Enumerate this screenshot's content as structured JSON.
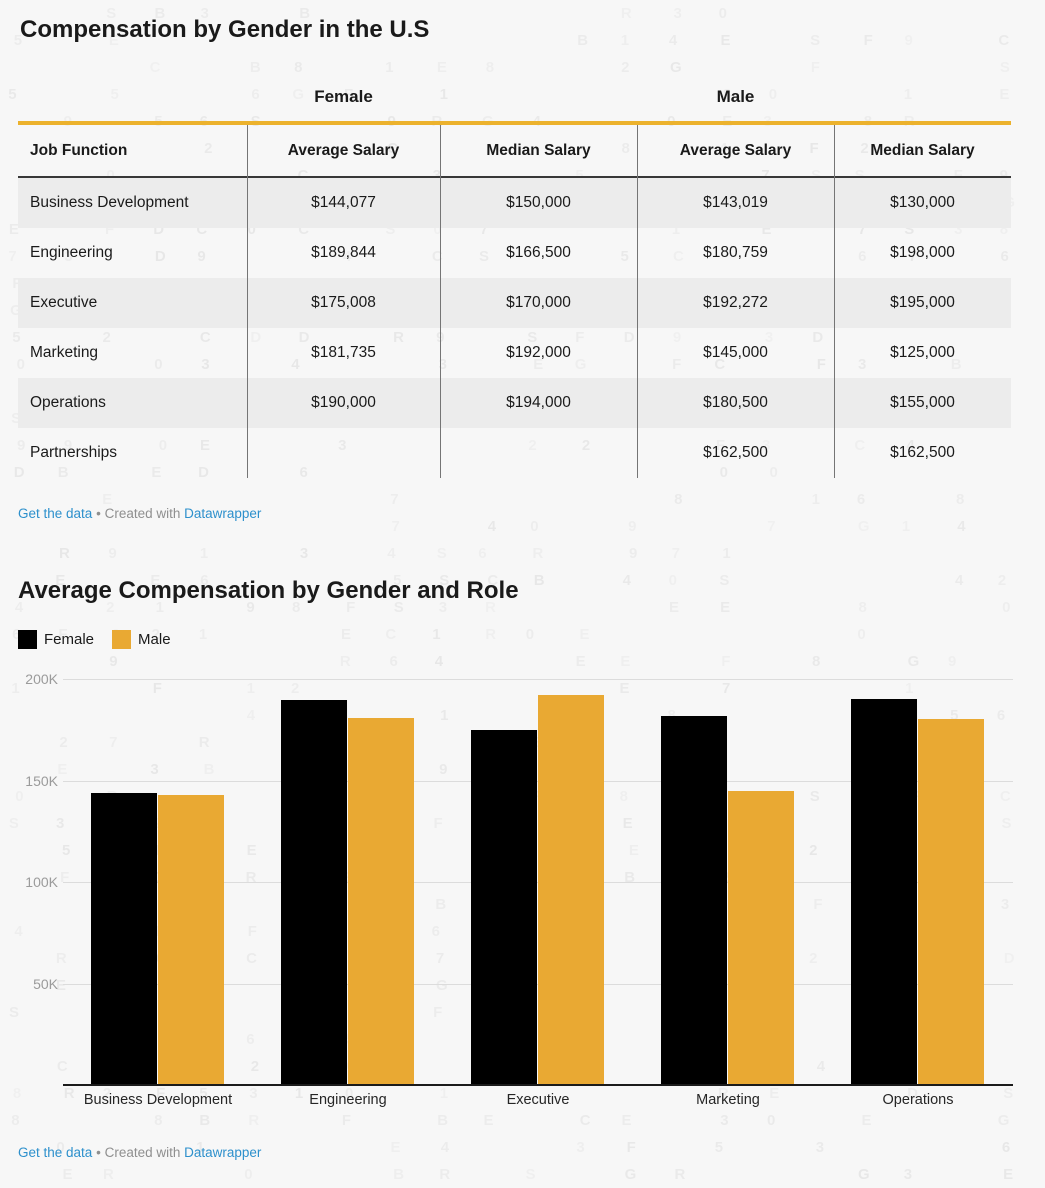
{
  "attribution": {
    "link_data": "Get the data",
    "separator": "•",
    "created_with": "Created with",
    "brand": "Datawrapper"
  },
  "table_widget": {
    "title": "Compensation by Gender in the U.S",
    "group_headers": {
      "female": "Female",
      "male": "Male"
    },
    "columns": [
      "Job Function",
      "Average Salary",
      "Median Salary",
      "Average Salary",
      "Median Salary"
    ],
    "rows": [
      [
        "Business Development",
        "$144,077",
        "$150,000",
        "$143,019",
        "$130,000"
      ],
      [
        "Engineering",
        "$189,844",
        "$166,500",
        "$180,759",
        "$198,000"
      ],
      [
        "Executive",
        "$175,008",
        "$170,000",
        "$192,272",
        "$195,000"
      ],
      [
        "Marketing",
        "$181,735",
        "$192,000",
        "$145,000",
        "$125,000"
      ],
      [
        "Operations",
        "$190,000",
        "$194,000",
        "$180,500",
        "$155,000"
      ],
      [
        "Partnerships",
        "",
        "",
        "$162,500",
        "$162,500"
      ]
    ]
  },
  "chart_widget": {
    "title": "Average Compensation by Gender and Role"
  },
  "chart_data": {
    "type": "bar",
    "title": "Average Compensation by Gender and Role",
    "categories": [
      "Business Development",
      "Engineering",
      "Executive",
      "Marketing",
      "Operations"
    ],
    "series": [
      {
        "name": "Female",
        "color": "#000000",
        "values": [
          144077,
          189844,
          175008,
          181735,
          190000
        ]
      },
      {
        "name": "Male",
        "color": "#e9a933",
        "values": [
          143019,
          180759,
          192272,
          145000,
          180500
        ]
      }
    ],
    "xlabel": "",
    "ylabel": "",
    "ylim": [
      0,
      200000
    ],
    "yticks": [
      {
        "value": 50000,
        "label": "50K"
      },
      {
        "value": 100000,
        "label": "100K"
      },
      {
        "value": 150000,
        "label": "150K"
      },
      {
        "value": 200000,
        "label": "200K"
      }
    ],
    "grid": true,
    "legend_position": "top-left"
  },
  "colors": {
    "page_bg": "#f7f7f7",
    "zebra_row": "#ececec",
    "accent_rule": "#ecb22d",
    "female_bar": "#000000",
    "male_bar": "#e9a933",
    "link_blue": "#2d90cc",
    "muted_text": "#8f8f8f",
    "axis_text": "#9b9b9b",
    "gridline": "#dcdcdc"
  },
  "decor": {
    "watermark_charset": "0123456789BESRDFGCE"
  }
}
